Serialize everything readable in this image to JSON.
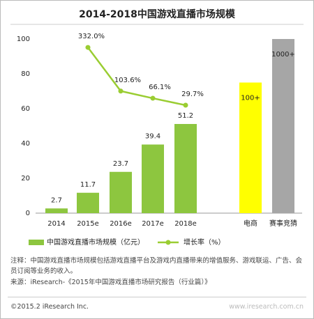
{
  "chart_data": {
    "type": "bar",
    "title": "2014-2018中国游戏直播市场规模",
    "categories": [
      "2014",
      "2015e",
      "2016e",
      "2017e",
      "2018e",
      "电商",
      "赛事竞猜"
    ],
    "series": [
      {
        "name": "中国游戏直播市场规模（亿元）",
        "color": "#8dc63f",
        "values": [
          2.7,
          11.7,
          23.7,
          39.4,
          51.2,
          null,
          null
        ]
      },
      {
        "name": "增长率（%）",
        "type": "line",
        "axis": "y2",
        "color": "#9acd32",
        "values": [
          null,
          332.0,
          103.6,
          66.1,
          29.7,
          null,
          null
        ],
        "value_labels": [
          null,
          "332.0%",
          "103.6%",
          "66.1%",
          "29.7%",
          null,
          null
        ]
      }
    ],
    "other_bars": {
      "values": [
        null,
        null,
        null,
        null,
        null,
        75,
        100
      ],
      "labels": [
        null,
        null,
        null,
        null,
        null,
        "100+",
        "1000+"
      ],
      "colors": [
        null,
        null,
        null,
        null,
        null,
        "#ffff00",
        "#a6a6a6"
      ]
    },
    "ylim": [
      0,
      100
    ],
    "yticks": [
      0,
      20,
      40,
      60,
      80,
      100
    ],
    "y2lim": [
      -535,
      376
    ],
    "note": "注释：中国游戏直播市场规模包括游戏直播平台及游戏内直播带来的增值服务、游戏联运、广告、会员订阅等业务的收入。",
    "source": "来源：iResearch-《2015年中国游戏直播市场研究报告（行业篇）》",
    "copyright": "©2015.2 iResearch Inc.",
    "website": "www.iresearch.com.cn"
  }
}
